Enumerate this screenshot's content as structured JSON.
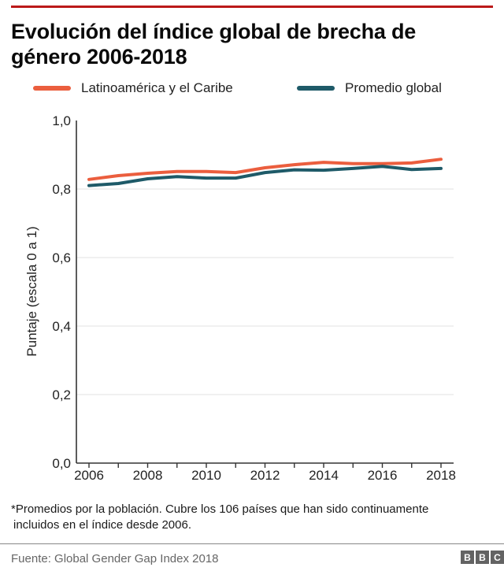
{
  "accent": {
    "top_rule_color": "#bb1919",
    "axis_color": "#333333",
    "grid_color": "#e7e7e7",
    "text_color": "#222222",
    "source_color": "#666666",
    "logo_color": "#636363"
  },
  "header": {
    "title_line1": "Evolución del índice global de brecha de",
    "title_line2": "género 2006-2018"
  },
  "chart_data": {
    "type": "line",
    "title": "Evolución del índice global de brecha de género 2006-2018",
    "x": [
      2006,
      2007,
      2008,
      2009,
      2010,
      2011,
      2012,
      2013,
      2014,
      2015,
      2016,
      2017,
      2018
    ],
    "series": [
      {
        "name": "Latinoamérica y el Caribe",
        "color": "#eb5e3e",
        "values": [
          0.828,
          0.839,
          0.846,
          0.851,
          0.851,
          0.848,
          0.862,
          0.871,
          0.878,
          0.874,
          0.874,
          0.876,
          0.887
        ]
      },
      {
        "name": "Promedio global",
        "color": "#1e5a68",
        "values": [
          0.81,
          0.816,
          0.83,
          0.836,
          0.832,
          0.832,
          0.848,
          0.856,
          0.855,
          0.86,
          0.866,
          0.857,
          0.86
        ]
      }
    ],
    "xlabel": "",
    "ylabel": "Puntaje (escala 0 a 1)",
    "ylim": [
      0,
      1
    ],
    "yticks": [
      0,
      0.2,
      0.4,
      0.6,
      0.8,
      1.0
    ],
    "ytick_labels": [
      "0,0",
      "0,2",
      "0,4",
      "0,6",
      "0,8",
      "1,0"
    ],
    "xtick_label_years": [
      2006,
      2008,
      2010,
      2012,
      2014,
      2016,
      2018
    ],
    "grid": "horizontal",
    "legend_position": "top"
  },
  "footer": {
    "footnote_line1": "*Promedios por la población. Cubre los 106 países que han sido continuamente",
    "footnote_line2": "incluidos en el índice desde 2006.",
    "source": "Fuente: Global Gender Gap Index 2018",
    "logo_letters": [
      "B",
      "B",
      "C"
    ]
  }
}
